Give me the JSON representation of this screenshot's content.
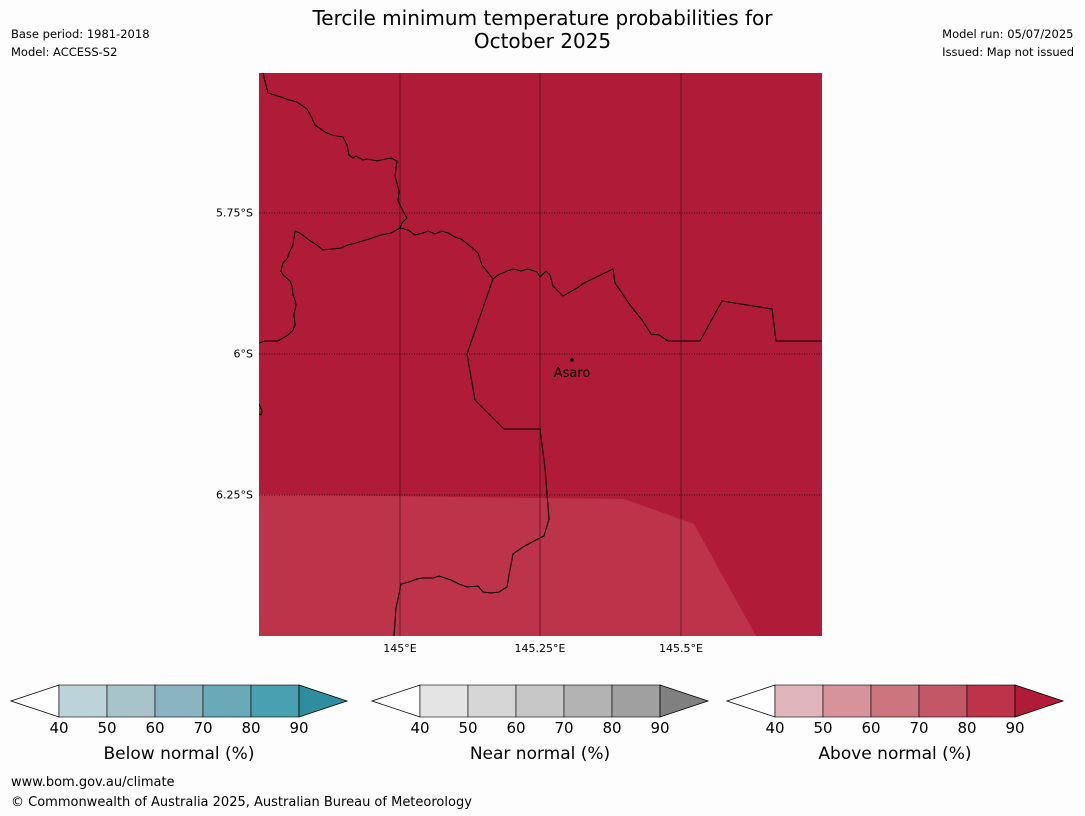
{
  "title_line1": "Tercile minimum temperature probabilities for",
  "title_line2": "October 2025",
  "meta_left": {
    "base_period": "Base period: 1981-2018",
    "model": "Model: ACCESS-S2"
  },
  "meta_right": {
    "model_run": "Model run: 05/07/2025",
    "issued": "Issued: Map not issued"
  },
  "map": {
    "place": "Asaro",
    "lat_labels": [
      "5.75°S",
      "6°S",
      "6.25°S"
    ],
    "lon_labels": [
      "145°E",
      "145.25°E",
      "145.5°E"
    ],
    "colors": {
      "above_90": "#b01c38",
      "above_80": "#bd3349"
    }
  },
  "colorbars": [
    {
      "label": "Below normal (%)",
      "ticks": [
        "40",
        "50",
        "60",
        "70",
        "80",
        "90"
      ],
      "colors": [
        "#bcd3da",
        "#a6c4ca",
        "#89b4c0",
        "#6aaab8",
        "#49a0b0",
        "#2e8e9e"
      ]
    },
    {
      "label": "Near normal (%)",
      "ticks": [
        "40",
        "50",
        "60",
        "70",
        "80",
        "90"
      ],
      "colors": [
        "#e4e4e4",
        "#d6d6d6",
        "#c7c7c7",
        "#b3b3b3",
        "#a0a0a0",
        "#808080"
      ]
    },
    {
      "label": "Above normal (%)",
      "ticks": [
        "40",
        "50",
        "60",
        "70",
        "80",
        "90"
      ],
      "colors": [
        "#e0b5bb",
        "#d6939c",
        "#cc757f",
        "#c35766",
        "#bd3349",
        "#b01c38"
      ]
    }
  ],
  "footer": {
    "url": "www.bom.gov.au/climate",
    "copyright": "© Commonwealth of Australia 2025, Australian Bureau of Meteorology"
  }
}
